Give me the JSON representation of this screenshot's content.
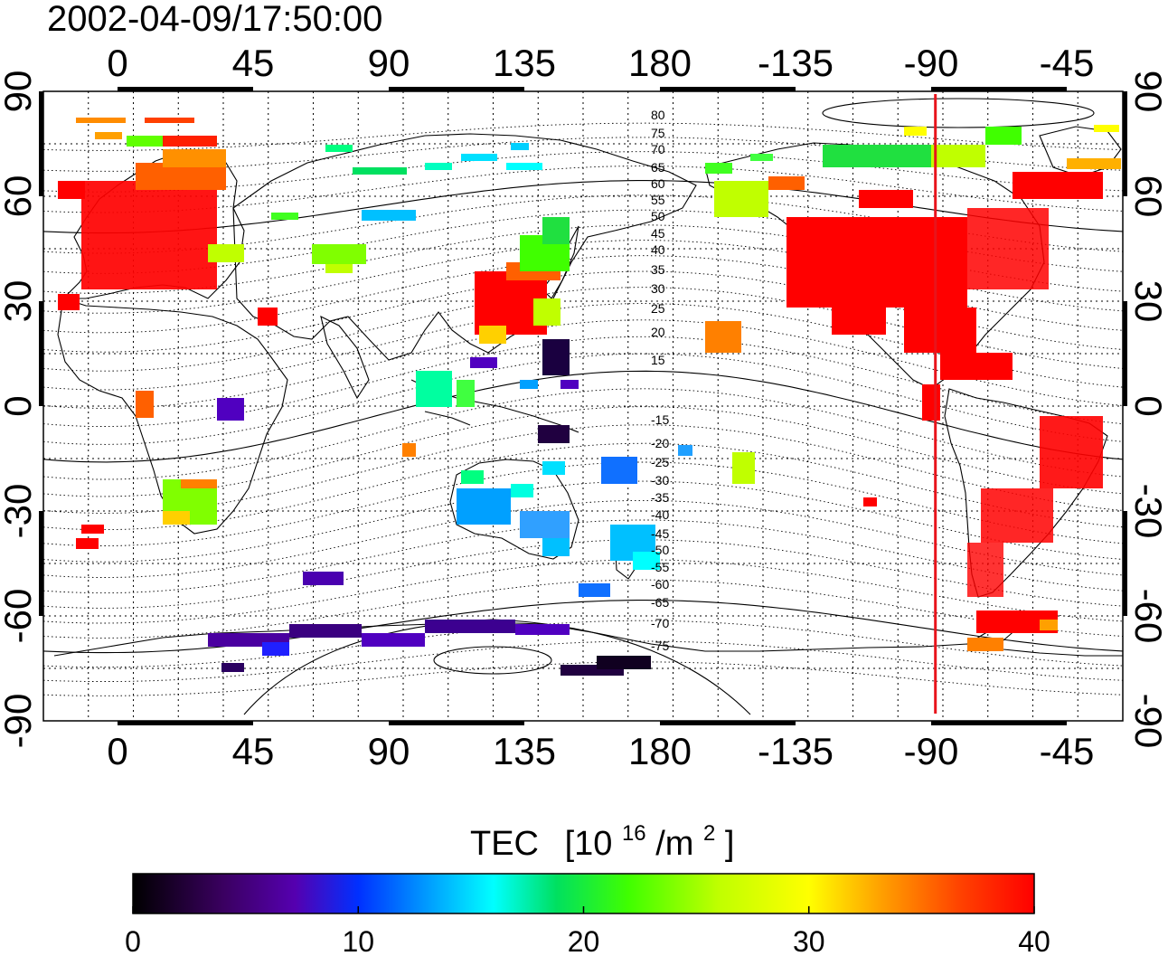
{
  "timestamp": "2002-04-09/17:50:00",
  "map": {
    "lon_ticks": [
      "0",
      "45",
      "90",
      "135",
      "180",
      "-135",
      "-90",
      "-45"
    ],
    "lat_ticks_left": [
      "90",
      "60",
      "30",
      "0",
      "-30",
      "-60",
      "-90"
    ],
    "lat_ticks_right": [
      "90",
      "60",
      "30",
      "0",
      "-30",
      "-60",
      "-90"
    ],
    "contour_labels_north": [
      "80",
      "75",
      "70",
      "65",
      "60",
      "55",
      "50",
      "45",
      "40",
      "35",
      "30",
      "25",
      "20",
      "15"
    ],
    "contour_labels_south": [
      "-15",
      "-20",
      "-25",
      "-30",
      "-35",
      "-40",
      "-45",
      "-50",
      "-55",
      "-60",
      "-65",
      "-70",
      "-75"
    ],
    "sun_meridian_lon": -92.5,
    "sun_meridian_color": "#e8141c"
  },
  "colorbar": {
    "title_main": "TEC",
    "title_unit_open": "[10",
    "title_exp": "16",
    "title_unit_mid": "/m",
    "title_exp2": "2",
    "title_unit_close": "]",
    "tick_labels": [
      "0",
      "10",
      "20",
      "30",
      "40"
    ],
    "min": 0,
    "max": 40,
    "stops": [
      "#000000",
      "#3a0060",
      "#5500b0",
      "#0030ff",
      "#00a0ff",
      "#00ffff",
      "#00e060",
      "#40ff00",
      "#c0ff00",
      "#ffff00",
      "#ffa000",
      "#ff4000",
      "#ff0000"
    ]
  }
}
